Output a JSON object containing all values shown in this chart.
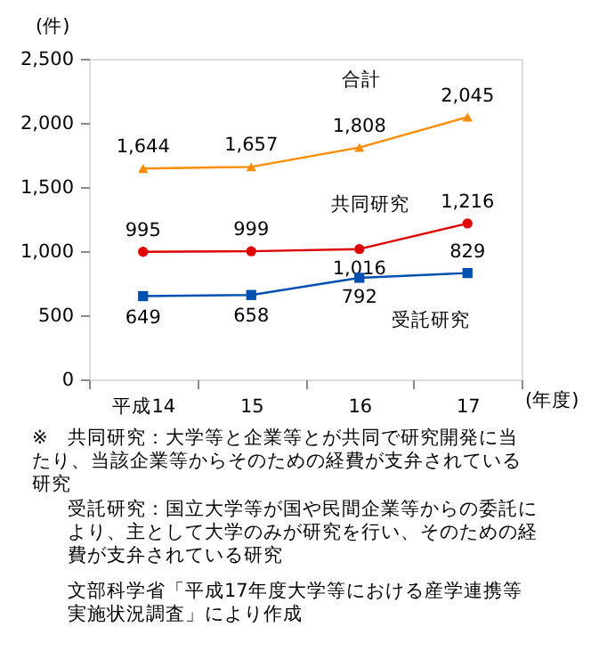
{
  "chart_data": {
    "type": "line",
    "categories": [
      "平成14",
      "15",
      "16",
      "17"
    ],
    "xlabel": "(年度)",
    "ylabel": "(件)",
    "ylim": [
      0,
      2500
    ],
    "yticks": [
      {
        "value": 0,
        "label": "0"
      },
      {
        "value": 500,
        "label": "500"
      },
      {
        "value": 1000,
        "label": "1,000"
      },
      {
        "value": 1500,
        "label": "1,500"
      },
      {
        "value": 2000,
        "label": "2,000"
      },
      {
        "value": 2500,
        "label": "2,500"
      }
    ],
    "series": [
      {
        "name": "合計",
        "color": "#ff8c00",
        "marker": "triangle",
        "values": [
          1644,
          1657,
          1808,
          2045
        ],
        "value_labels": [
          "1,644",
          "1,657",
          "1,808",
          "2,045"
        ]
      },
      {
        "name": "共同研究",
        "color": "#e00000",
        "marker": "circle",
        "values": [
          995,
          999,
          1016,
          1216
        ],
        "value_labels": [
          "995",
          "999",
          "1,016",
          "1,216"
        ]
      },
      {
        "name": "受託研究",
        "color": "#0050b0",
        "marker": "square",
        "values": [
          649,
          658,
          792,
          829
        ],
        "value_labels": [
          "649",
          "658",
          "792",
          "829"
        ]
      }
    ],
    "grid": false,
    "legend": false,
    "annotations": [
      "※　共同研究：大学等と企業等とが共同で研究開発に当たり、当該企業等からそのための経費が支弁されている研究",
      "受託研究：国立大学等が国や民間企業等からの委託により、主として大学のみが研究を行い、そのための経費が支弁されている研究",
      "文部科学省「平成17年度大学等における産学連携等実施状況調査」により作成"
    ]
  }
}
